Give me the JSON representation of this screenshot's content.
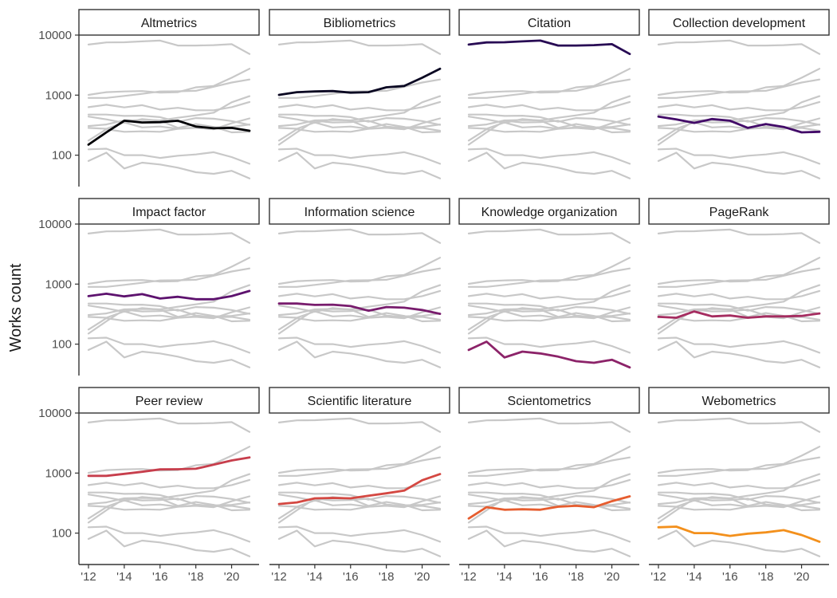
{
  "chart_data": {
    "type": "line",
    "title": "",
    "xlabel": "",
    "ylabel": "Works count",
    "y_scale": "log",
    "ylim": [
      30,
      10000
    ],
    "y_ticks": [
      100,
      1000,
      10000
    ],
    "y_tick_labels": [
      "100",
      "1000",
      "10000"
    ],
    "xlim": [
      2012,
      2021
    ],
    "x_ticks": [
      2012,
      2014,
      2016,
      2018,
      2020
    ],
    "x_tick_labels": [
      "'12",
      "'14",
      "'16",
      "'18",
      "'20"
    ],
    "grid": false,
    "layout": "facet grid 3 rows x 4 columns; each panel highlights one series, others shown in light grey",
    "background_series_color": "#c8c8c8",
    "x": [
      2012,
      2013,
      2014,
      2015,
      2016,
      2017,
      2018,
      2019,
      2020,
      2021
    ],
    "series": [
      {
        "name": "Altmetrics",
        "color": "#000004",
        "values": [
          150,
          240,
          375,
          350,
          355,
          375,
          300,
          280,
          285,
          255
        ]
      },
      {
        "name": "Bibliometrics",
        "color": "#0a0722",
        "values": [
          1010,
          1120,
          1150,
          1170,
          1100,
          1120,
          1350,
          1420,
          1950,
          2750
        ]
      },
      {
        "name": "Citation",
        "color": "#280b54",
        "values": [
          6950,
          7550,
          7600,
          7850,
          8100,
          6700,
          6700,
          6800,
          7050,
          4850
        ]
      },
      {
        "name": "Collection development",
        "color": "#420a68",
        "values": [
          440,
          395,
          345,
          400,
          375,
          285,
          330,
          295,
          240,
          245
        ]
      },
      {
        "name": "Impact factor",
        "color": "#5d126e",
        "values": [
          630,
          690,
          625,
          680,
          575,
          615,
          560,
          560,
          630,
          770
        ]
      },
      {
        "name": "Information science",
        "color": "#781c6d",
        "values": [
          475,
          475,
          450,
          455,
          430,
          360,
          415,
          405,
          370,
          320
        ]
      },
      {
        "name": "Knowledge organization",
        "color": "#8c2369",
        "values": [
          80,
          110,
          60,
          75,
          70,
          62,
          52,
          49,
          55,
          41
        ]
      },
      {
        "name": "PageRank",
        "color": "#a52c60",
        "values": [
          285,
          275,
          350,
          290,
          300,
          275,
          290,
          290,
          295,
          325
        ]
      },
      {
        "name": "Peer review",
        "color": "#c73e4c",
        "values": [
          900,
          900,
          970,
          1050,
          1150,
          1160,
          1180,
          1380,
          1620,
          1820
        ]
      },
      {
        "name": "Scientific literature",
        "color": "#d44842",
        "values": [
          305,
          325,
          380,
          385,
          380,
          420,
          460,
          510,
          760,
          960
        ]
      },
      {
        "name": "Scientometrics",
        "color": "#e65d2f",
        "values": [
          175,
          270,
          245,
          250,
          245,
          275,
          285,
          270,
          340,
          410
        ]
      },
      {
        "name": "Webometrics",
        "color": "#f3901c",
        "values": [
          125,
          128,
          100,
          100,
          90,
          98,
          103,
          112,
          93,
          72
        ]
      }
    ]
  }
}
